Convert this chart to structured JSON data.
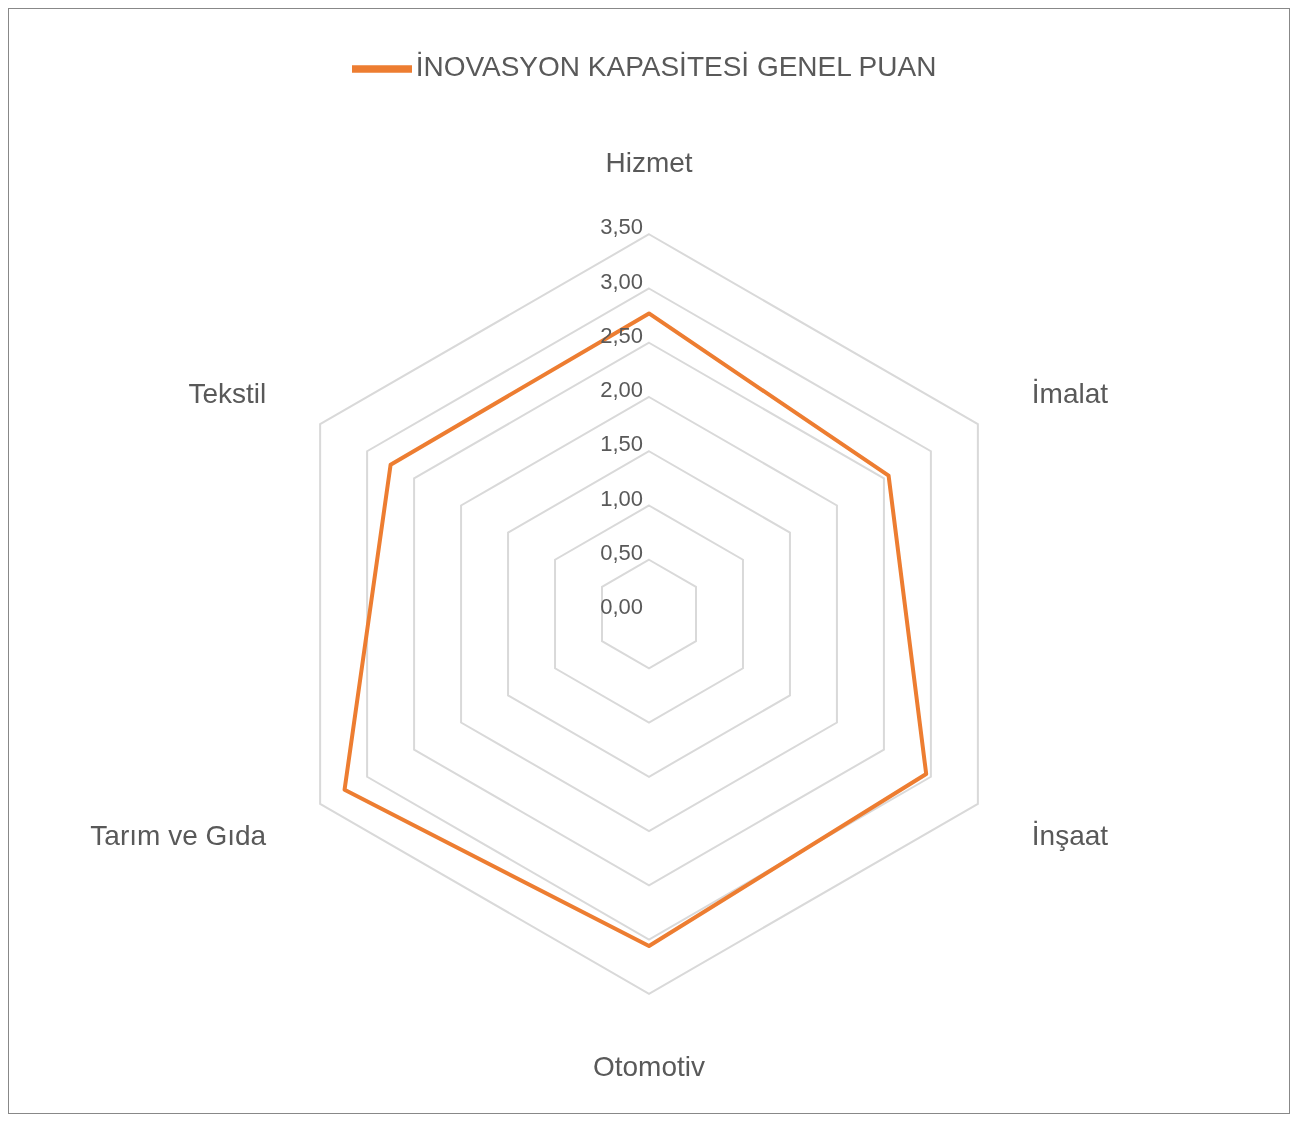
{
  "chart_data": {
    "type": "radar",
    "categories": [
      "Hizmet",
      "İmalat",
      "İnşaat",
      "Otomotiv",
      "Tarım ve Gıda",
      "Tekstil"
    ],
    "series": [
      {
        "name": "İNOVASYON KAPASİTESİ GENEL PUAN",
        "color": "#ed7d31",
        "values": [
          2.77,
          2.55,
          2.95,
          3.06,
          3.24,
          2.75
        ]
      }
    ],
    "ylim": [
      0,
      3.5
    ],
    "yticks": [
      {
        "value": 0,
        "label": "0,00"
      },
      {
        "value": 0.5,
        "label": "0,50"
      },
      {
        "value": 1,
        "label": "1,00"
      },
      {
        "value": 1.5,
        "label": "1,50"
      },
      {
        "value": 2,
        "label": "2,00"
      },
      {
        "value": 2.5,
        "label": "2,50"
      },
      {
        "value": 3,
        "label": "3,00"
      },
      {
        "value": 3.5,
        "label": "3,50"
      }
    ],
    "grid": true,
    "legend": "top",
    "marker": "none",
    "line_style": "solid"
  }
}
